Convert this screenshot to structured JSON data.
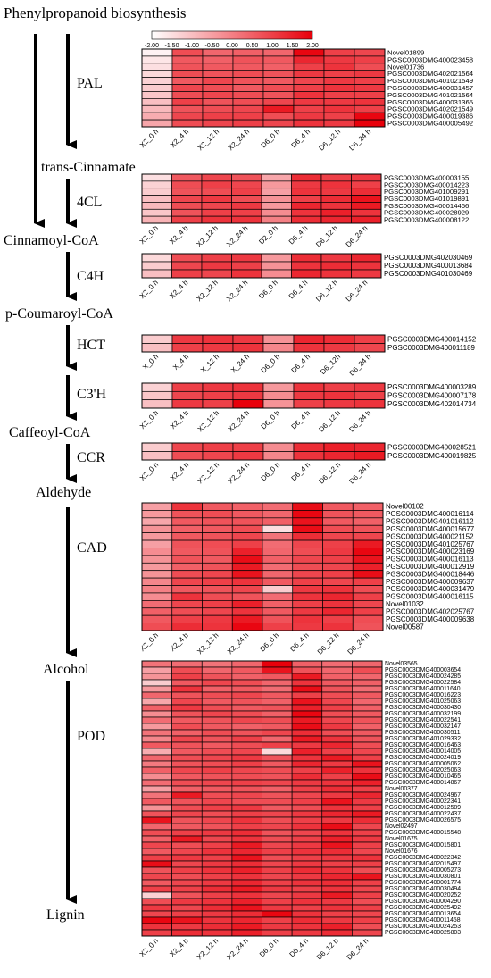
{
  "title": "Phenylpropanoid biosynthesis",
  "colors": {
    "low": "#ffffff",
    "high": "#e8000b",
    "grid": "#000000",
    "arrow": "#000000"
  },
  "legend": {
    "ticks": [
      "-2.00",
      "-1.50",
      "-1.00",
      "-0.50",
      "0.00",
      "0.50",
      "1.00",
      "1.50",
      "2.00"
    ],
    "min": -2,
    "max": 2
  },
  "metabolites": [
    "trans-Cinnamate",
    "Cinnamoyl-CoA",
    "p-Coumaroyl-CoA",
    "Caffeoyl-CoA",
    "Aldehyde",
    "Alcohol",
    "Lignin"
  ],
  "chart_data": [
    {
      "type": "heatmap",
      "enzyme": "PAL",
      "columns": [
        "X2_0 h",
        "X2_4 h",
        "X2_12 h",
        "X2_24 h",
        "D6_0 h",
        "D6_4 h",
        "D6_12 h",
        "D6_24 h"
      ],
      "rows": [
        "Novel01899",
        "PGSC0003DMG400023458",
        "Novel01736",
        "PGSC0003DMG402021564",
        "PGSC0003DMG401021549",
        "PGSC0003DMG400031457",
        "PGSC0003DMG401021564",
        "PGSC0003DMG400031365",
        "PGSC0003DMG402021549",
        "PGSC0003DMG400019386",
        "PGSC0003DMG400005492"
      ],
      "values": [
        [
          -1.8,
          0.8,
          0.4,
          0.5,
          0.4,
          1.9,
          1.0,
          0.9
        ],
        [
          -1.6,
          0.6,
          0.5,
          0.7,
          0.6,
          1.4,
          1.1,
          1.0
        ],
        [
          -1.5,
          0.7,
          0.6,
          0.6,
          0.5,
          1.0,
          1.2,
          0.8
        ],
        [
          -1.4,
          0.8,
          0.7,
          0.8,
          0.7,
          1.1,
          1.0,
          1.1
        ],
        [
          -1.3,
          0.6,
          0.9,
          0.7,
          0.6,
          0.9,
          1.1,
          1.0
        ],
        [
          -1.2,
          0.9,
          0.8,
          0.6,
          0.8,
          1.0,
          1.2,
          1.1
        ],
        [
          -1.1,
          0.8,
          0.9,
          0.8,
          0.7,
          1.2,
          1.0,
          1.0
        ],
        [
          -1.0,
          1.0,
          0.7,
          0.8,
          0.9,
          1.1,
          1.1,
          1.2
        ],
        [
          -0.9,
          0.7,
          0.8,
          0.9,
          1.6,
          1.0,
          1.2,
          1.0
        ],
        [
          -0.7,
          0.9,
          1.0,
          1.0,
          0.8,
          1.1,
          1.0,
          1.9
        ],
        [
          -0.6,
          0.8,
          0.9,
          1.0,
          0.9,
          1.2,
          1.1,
          2.0
        ]
      ]
    },
    {
      "type": "heatmap",
      "enzyme": "4CL",
      "columns": [
        "X2_0 h",
        "X2_4 h",
        "X2_12 h",
        "X2_24 h",
        "D2_0 h",
        "D6_4 h",
        "D6_12 h",
        "D6_24 h"
      ],
      "rows": [
        "PGSC0003DMG400003155",
        "PGSC0003DMG400014223",
        "PGSC0003DMG401009291",
        "PGSC0003DMG401019891",
        "PGSC0003DMG400014466",
        "PGSC0003DMG400028929",
        "PGSC0003DMG400008122"
      ],
      "values": [
        [
          -1.5,
          0.6,
          0.9,
          0.7,
          -0.6,
          1.3,
          1.0,
          1.1
        ],
        [
          -1.3,
          0.8,
          1.0,
          0.9,
          -0.4,
          1.1,
          1.2,
          1.0
        ],
        [
          -1.2,
          0.7,
          0.8,
          1.0,
          -0.5,
          1.2,
          1.1,
          1.3
        ],
        [
          -1.0,
          0.9,
          1.1,
          0.8,
          -0.3,
          1.0,
          1.3,
          1.7
        ],
        [
          -0.9,
          0.8,
          0.9,
          1.1,
          -0.4,
          1.4,
          1.2,
          1.6
        ],
        [
          -1.1,
          0.7,
          1.0,
          1.0,
          -0.2,
          1.2,
          1.5,
          1.2
        ],
        [
          -0.8,
          1.0,
          1.2,
          1.2,
          0.0,
          1.3,
          1.4,
          1.5
        ]
      ]
    },
    {
      "type": "heatmap",
      "enzyme": "C4H",
      "columns": [
        "X2_0 h",
        "X2_4 h",
        "X2_12 h",
        "X2_24 h",
        "D6_0 h",
        "D6_4 h",
        "D6_12 h",
        "D6_24 h"
      ],
      "rows": [
        "PGSC0003DMG402030469",
        "PGSC0003DMG400013684",
        "PGSC0003DMG401030469"
      ],
      "values": [
        [
          -1.4,
          0.8,
          1.0,
          1.1,
          -0.4,
          1.3,
          1.1,
          1.4
        ],
        [
          -1.2,
          0.9,
          1.1,
          1.0,
          -0.3,
          1.2,
          1.3,
          1.2
        ],
        [
          -1.0,
          1.0,
          0.9,
          1.2,
          -0.2,
          1.4,
          1.2,
          1.1
        ]
      ]
    },
    {
      "type": "heatmap",
      "enzyme": "HCT",
      "columns": [
        "X_0 h",
        "X_4 h",
        "X_12 h",
        "X_24 h",
        "D6_0 h",
        "D6_4 h",
        "D6_12h",
        "D6_24 h"
      ],
      "rows": [
        "PGSC0003DMG400014152",
        "PGSC0003DMG400011189"
      ],
      "values": [
        [
          -1.2,
          1.1,
          1.2,
          1.1,
          -0.3,
          1.4,
          1.3,
          1.0
        ],
        [
          -1.0,
          1.0,
          1.1,
          1.2,
          -0.1,
          1.2,
          1.1,
          0.9
        ]
      ]
    },
    {
      "type": "heatmap",
      "enzyme": "C3'H",
      "columns": [
        "X2_0 h",
        "X2_4 h",
        "X2_12 h",
        "X2_24 h",
        "D6_0 h",
        "D6_4 h",
        "D6_12 h",
        "D6_24 h"
      ],
      "rows": [
        "PGSC0003DMG400003289",
        "PGSC0003DMG400007178",
        "PGSC0003DMG402014734"
      ],
      "values": [
        [
          -1.3,
          1.0,
          1.1,
          1.2,
          -0.4,
          1.2,
          1.0,
          1.1
        ],
        [
          -1.1,
          0.9,
          1.0,
          1.1,
          -0.2,
          1.1,
          1.2,
          1.0
        ],
        [
          -1.0,
          1.1,
          1.0,
          2.0,
          -0.3,
          1.0,
          1.1,
          1.2
        ]
      ]
    },
    {
      "type": "heatmap",
      "enzyme": "CCR",
      "columns": [
        "X2_0 h",
        "X2_4 h",
        "X2_12 h",
        "X2_24 h",
        "D6_0 h",
        "D6_4 h",
        "D6_12 h",
        "D6_24 h"
      ],
      "rows": [
        "PGSC0003DMG400028521",
        "PGSC0003DMG400019825"
      ],
      "values": [
        [
          -1.2,
          0.9,
          1.0,
          1.0,
          -0.2,
          1.3,
          1.5,
          1.4
        ],
        [
          -1.0,
          0.8,
          0.9,
          1.1,
          -0.1,
          1.2,
          1.4,
          1.6
        ]
      ]
    },
    {
      "type": "heatmap",
      "enzyme": "CAD",
      "columns": [
        "X2_0 h",
        "X2_4 h",
        "X2_12 h",
        "X2_24 h",
        "D6_0 h",
        "D6_4 h",
        "D6_12 h",
        "D6_24 h"
      ],
      "rows": [
        "Novel00102",
        "PGSC0003DMG400016114",
        "PGSC0003DMG401016112",
        "PGSC0003DMG400015677",
        "PGSC0003DMG400021152",
        "PGSC0003DMG401025767",
        "PGSC0003DMG400023169",
        "PGSC0003DMG400016113",
        "PGSC0003DMG400012919",
        "PGSC0003DMG400018446",
        "PGSC0003DMG400009637",
        "PGSC0003DMG400031479",
        "PGSC0003DMG400016115",
        "Novel01032",
        "PGSC0003DMG402025767",
        "PGSC0003DMG400009638",
        "Novel00587"
      ],
      "values": [
        [
          -0.5,
          1.2,
          0.6,
          0.5,
          0.3,
          1.8,
          0.6,
          0.5
        ],
        [
          -0.4,
          0.7,
          0.8,
          0.6,
          0.4,
          1.9,
          0.7,
          0.6
        ],
        [
          -0.6,
          0.6,
          0.7,
          0.7,
          0.5,
          1.7,
          0.6,
          0.5
        ],
        [
          -0.3,
          0.5,
          0.6,
          0.8,
          -1.5,
          1.8,
          0.8,
          0.7
        ],
        [
          -0.4,
          0.6,
          0.7,
          0.9,
          0.2,
          1.3,
          0.9,
          0.9
        ],
        [
          -0.5,
          0.7,
          0.8,
          1.0,
          0.3,
          0.9,
          1.0,
          1.6
        ],
        [
          -0.2,
          0.6,
          0.7,
          1.5,
          0.4,
          0.8,
          1.1,
          1.9
        ],
        [
          -0.3,
          0.7,
          0.6,
          1.8,
          0.5,
          0.9,
          1.0,
          1.7
        ],
        [
          -0.4,
          0.5,
          0.7,
          1.6,
          0.3,
          0.8,
          0.9,
          1.5
        ],
        [
          -0.3,
          0.8,
          0.9,
          1.7,
          0.4,
          0.9,
          1.0,
          1.8
        ],
        [
          -0.1,
          0.9,
          1.0,
          1.2,
          0.6,
          1.0,
          0.9,
          1.0
        ],
        [
          0.0,
          0.6,
          0.7,
          0.9,
          -1.2,
          1.1,
          1.2,
          0.8
        ],
        [
          -0.2,
          1.2,
          0.8,
          0.7,
          0.3,
          1.2,
          1.4,
          1.0
        ],
        [
          0.3,
          0.9,
          1.0,
          1.5,
          0.5,
          1.0,
          1.2,
          0.9
        ],
        [
          0.5,
          0.8,
          0.9,
          1.2,
          0.6,
          1.1,
          1.4,
          1.0
        ],
        [
          0.6,
          1.0,
          1.1,
          1.6,
          0.7,
          1.2,
          1.0,
          0.8
        ],
        [
          0.8,
          1.3,
          1.2,
          1.9,
          1.0,
          1.1,
          1.2,
          0.7
        ]
      ]
    },
    {
      "type": "heatmap",
      "enzyme": "POD",
      "columns": [
        "X2_0 h",
        "X2_4 h",
        "X2_12 h",
        "X2_24 h",
        "D6_0 h",
        "D6_4 h",
        "D6_12 h",
        "D6_24 h"
      ],
      "rows": [
        "Novel03565",
        "PGSC0003DMG400003654",
        "PGSC0003DMG400024285",
        "PGSC0003DMG400022584",
        "PGSC0003DMG400011640",
        "PGSC0003DMG400016223",
        "PGSC0003DMG401025063",
        "PGSC0003DMG400030430",
        "PGSC0003DMG400032199",
        "PGSC0003DMG400022541",
        "PGSC0003DMG400032147",
        "PGSC0003DMG400030511",
        "PGSC0003DMG401029332",
        "PGSC0003DMG400016463",
        "PGSC0003DMG400014005",
        "PGSC0003DMG400024019",
        "PGSC0003DMG400005062",
        "PGSC0003DMG402025063",
        "PGSC0003DMG400010465",
        "PGSC0003DMG400014867",
        "Novel00377",
        "PGSC0003DMG400024967",
        "PGSC0003DMG400022341",
        "PGSC0003DMG400012589",
        "PGSC0003DMG400022437",
        "PGSC0003DMG400026575",
        "Novel02497",
        "PGSC0003DMG400015548",
        "Novel01675",
        "PGSC0003DMG400015801",
        "Novel01676",
        "PGSC0003DMG400022342",
        "PGSC0003DMG402015497",
        "PGSC0003DMG400005273",
        "PGSC0003DMG400030801",
        "PGSC0003DMG400001774",
        "PGSC0003DMG400030494",
        "PGSC0003DMG400020252",
        "PGSC0003DMG400004290",
        "PGSC0003DMG400025492",
        "PGSC0003DMG400013654",
        "PGSC0003DMG400011458",
        "PGSC0003DMG400024253",
        "PGSC0003DMG400025803"
      ],
      "values": [
        [
          0.2,
          0.3,
          0.2,
          0.4,
          2.0,
          0.5,
          0.3,
          0.4
        ],
        [
          -0.5,
          0.8,
          0.4,
          0.6,
          1.7,
          0.7,
          0.4,
          0.8
        ],
        [
          -0.3,
          1.0,
          0.7,
          0.5,
          0.6,
          1.6,
          0.5,
          0.4
        ],
        [
          -1.2,
          0.6,
          0.9,
          0.8,
          0.4,
          1.2,
          0.6,
          0.5
        ],
        [
          -0.4,
          1.2,
          0.5,
          0.6,
          0.3,
          1.8,
          0.7,
          0.3
        ],
        [
          0.4,
          0.7,
          0.8,
          0.9,
          0.6,
          1.0,
          0.8,
          0.6
        ],
        [
          -0.6,
          0.9,
          0.6,
          0.7,
          0.5,
          1.7,
          0.9,
          0.4
        ],
        [
          0.5,
          1.1,
          0.8,
          0.6,
          0.7,
          1.5,
          1.0,
          0.5
        ],
        [
          -0.2,
          0.7,
          0.9,
          0.8,
          0.5,
          1.9,
          0.8,
          0.6
        ],
        [
          0.3,
          0.6,
          0.7,
          0.9,
          0.8,
          1.6,
          0.9,
          0.7
        ],
        [
          -0.4,
          0.8,
          0.6,
          0.5,
          0.6,
          1.8,
          1.1,
          0.5
        ],
        [
          0.2,
          0.5,
          0.8,
          0.7,
          0.9,
          1.3,
          0.8,
          0.6
        ],
        [
          -0.1,
          0.9,
          0.7,
          1.0,
          0.4,
          1.6,
          1.2,
          0.7
        ],
        [
          0.6,
          0.7,
          0.6,
          0.8,
          1.0,
          1.1,
          1.4,
          0.8
        ],
        [
          -0.7,
          0.6,
          0.8,
          0.9,
          -1.4,
          1.5,
          1.0,
          0.9
        ],
        [
          0.4,
          0.8,
          0.9,
          1.1,
          0.7,
          1.2,
          1.6,
          1.0
        ],
        [
          0.1,
          0.7,
          0.8,
          1.0,
          0.6,
          1.4,
          1.1,
          1.7
        ],
        [
          0.5,
          0.9,
          1.0,
          0.9,
          0.8,
          1.0,
          1.5,
          1.2
        ],
        [
          -0.2,
          0.6,
          0.7,
          0.8,
          0.7,
          1.3,
          1.0,
          1.8
        ],
        [
          0.3,
          0.8,
          0.9,
          1.0,
          0.9,
          1.1,
          1.2,
          1.5
        ],
        [
          -0.5,
          0.5,
          0.6,
          0.7,
          0.5,
          1.0,
          1.3,
          1.0
        ],
        [
          0.2,
          1.6,
          0.8,
          0.9,
          0.7,
          0.9,
          1.1,
          1.4
        ],
        [
          0.6,
          0.7,
          0.9,
          0.8,
          0.8,
          1.0,
          1.7,
          1.1
        ],
        [
          -0.3,
          0.8,
          1.0,
          1.1,
          0.6,
          0.8,
          1.2,
          1.0
        ],
        [
          0.7,
          0.9,
          0.8,
          1.0,
          0.9,
          1.1,
          1.4,
          1.6
        ],
        [
          1.7,
          0.7,
          0.9,
          1.2,
          0.8,
          1.0,
          1.1,
          1.3
        ],
        [
          0.4,
          0.6,
          0.7,
          1.0,
          0.9,
          1.2,
          1.8,
          0.9
        ],
        [
          0.8,
          1.0,
          1.1,
          1.3,
          0.7,
          0.9,
          1.2,
          1.0
        ],
        [
          0.5,
          1.6,
          0.9,
          1.2,
          0.8,
          1.0,
          1.5,
          1.1
        ],
        [
          0.9,
          0.8,
          1.0,
          1.6,
          0.9,
          1.1,
          1.7,
          1.0
        ],
        [
          0.6,
          0.9,
          1.2,
          1.4,
          1.0,
          1.2,
          1.3,
          0.9
        ],
        [
          1.0,
          1.1,
          1.0,
          1.7,
          0.8,
          1.0,
          1.1,
          1.2
        ],
        [
          1.8,
          0.9,
          1.1,
          1.3,
          0.9,
          1.1,
          1.0,
          1.0
        ],
        [
          0.7,
          1.0,
          1.2,
          1.5,
          1.0,
          1.3,
          1.2,
          0.8
        ],
        [
          0.9,
          0.8,
          1.0,
          1.2,
          0.9,
          1.1,
          1.4,
          1.7
        ],
        [
          0.6,
          0.9,
          1.1,
          1.4,
          1.0,
          1.2,
          1.3,
          1.0
        ],
        [
          1.0,
          1.0,
          1.3,
          1.6,
          1.1,
          1.0,
          1.2,
          0.9
        ],
        [
          -1.3,
          0.7,
          1.0,
          1.2,
          0.9,
          1.1,
          1.6,
          1.0
        ],
        [
          0.8,
          1.1,
          1.2,
          1.5,
          1.0,
          1.2,
          1.1,
          0.8
        ],
        [
          1.1,
          0.9,
          1.3,
          1.7,
          1.1,
          1.0,
          1.2,
          1.0
        ],
        [
          0.9,
          1.0,
          1.1,
          1.3,
          1.9,
          1.2,
          1.0,
          0.9
        ],
        [
          1.9,
          1.7,
          1.2,
          1.4,
          1.0,
          1.3,
          1.1,
          1.0
        ],
        [
          1.2,
          1.1,
          1.3,
          1.6,
          1.1,
          1.2,
          1.5,
          0.8
        ],
        [
          1.0,
          1.3,
          1.2,
          1.5,
          1.0,
          1.1,
          1.3,
          0.9
        ]
      ]
    }
  ]
}
